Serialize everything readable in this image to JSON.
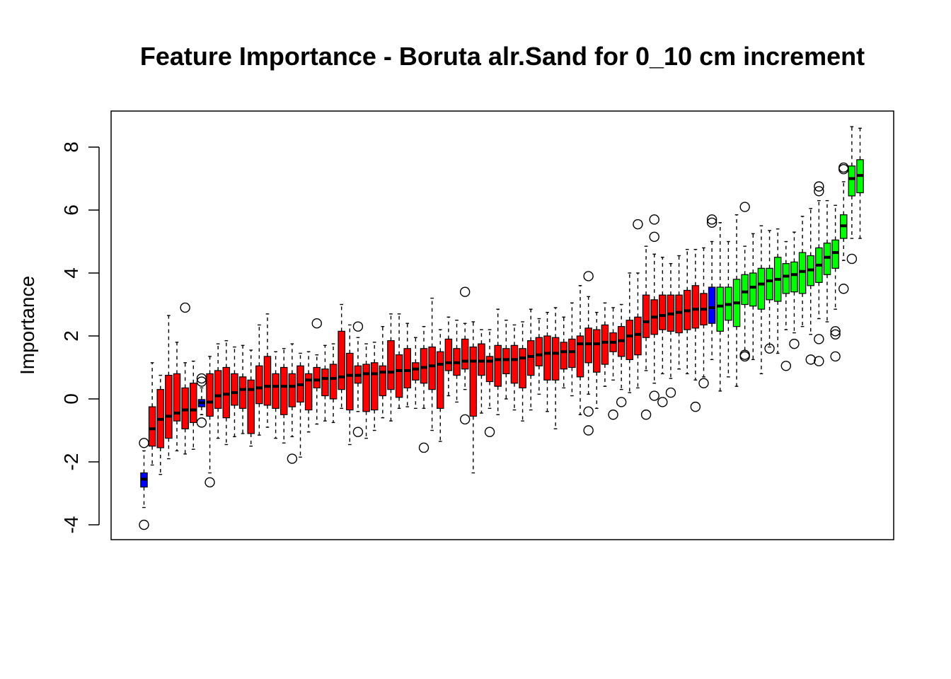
{
  "chart_data": {
    "type": "boxplot",
    "title": "Feature Importance - Boruta alr.Sand for 0_10 cm increment",
    "xlabel": "",
    "ylabel": "Importance",
    "ylim": [
      -4.4,
      9.2
    ],
    "yticks": [
      -4,
      -2,
      0,
      2,
      4,
      6,
      8
    ],
    "ytick_labels": [
      "-4",
      "-2",
      "0",
      "2",
      "4",
      "6",
      "8"
    ],
    "x_tick_labels_visible": false,
    "grid": false,
    "legend": "none",
    "colors": {
      "rejected": "#ff0000",
      "shadow": "#0000ff",
      "confirmed": "#00ff00"
    },
    "series": [
      {
        "status": "shadow",
        "q1": -2.8,
        "median": -2.55,
        "q3": -2.35,
        "wlow": -3.45,
        "whigh": -1.65,
        "outliers": [
          -1.4,
          -4.0
        ]
      },
      {
        "status": "rejected",
        "q1": -1.5,
        "median": -0.95,
        "q3": -0.25,
        "wlow": -2.1,
        "whigh": 1.15,
        "outliers": []
      },
      {
        "status": "rejected",
        "q1": -1.55,
        "median": -0.65,
        "q3": 0.3,
        "wlow": -2.4,
        "whigh": 0.75,
        "outliers": []
      },
      {
        "status": "rejected",
        "q1": -1.25,
        "median": -0.55,
        "q3": 0.75,
        "wlow": -1.9,
        "whigh": 2.65,
        "outliers": []
      },
      {
        "status": "rejected",
        "q1": -0.7,
        "median": -0.45,
        "q3": 0.8,
        "wlow": -1.65,
        "whigh": 1.8,
        "outliers": []
      },
      {
        "status": "rejected",
        "q1": -0.95,
        "median": -0.35,
        "q3": 0.35,
        "wlow": -1.75,
        "whigh": 1.15,
        "outliers": [
          2.9
        ]
      },
      {
        "status": "rejected",
        "q1": -0.75,
        "median": -0.35,
        "q3": 0.5,
        "wlow": -1.6,
        "whigh": 1.2,
        "outliers": []
      },
      {
        "status": "shadow",
        "q1": -0.25,
        "median": -0.12,
        "q3": -0.02,
        "wlow": -0.5,
        "whigh": 0.35,
        "outliers": [
          0.65,
          0.55,
          -0.75
        ]
      },
      {
        "status": "rejected",
        "q1": -0.55,
        "median": -0.1,
        "q3": 0.8,
        "wlow": -2.35,
        "whigh": 1.35,
        "outliers": [
          -2.65
        ]
      },
      {
        "status": "rejected",
        "q1": -0.3,
        "median": 0.1,
        "q3": 0.9,
        "wlow": -1.25,
        "whigh": 1.75,
        "outliers": []
      },
      {
        "status": "rejected",
        "q1": -0.6,
        "median": 0.15,
        "q3": 1.0,
        "wlow": -1.45,
        "whigh": 1.85,
        "outliers": []
      },
      {
        "status": "rejected",
        "q1": -0.2,
        "median": 0.2,
        "q3": 0.8,
        "wlow": -1.2,
        "whigh": 1.65,
        "outliers": []
      },
      {
        "status": "rejected",
        "q1": -0.3,
        "median": 0.3,
        "q3": 0.7,
        "wlow": -1.1,
        "whigh": 1.7,
        "outliers": []
      },
      {
        "status": "rejected",
        "q1": -1.1,
        "median": 0.3,
        "q3": 0.6,
        "wlow": -1.5,
        "whigh": 1.55,
        "outliers": []
      },
      {
        "status": "rejected",
        "q1": -0.15,
        "median": 0.35,
        "q3": 1.05,
        "wlow": -1.15,
        "whigh": 2.35,
        "outliers": []
      },
      {
        "status": "rejected",
        "q1": -0.2,
        "median": 0.4,
        "q3": 1.35,
        "wlow": -0.9,
        "whigh": 2.7,
        "outliers": []
      },
      {
        "status": "rejected",
        "q1": -0.3,
        "median": 0.4,
        "q3": 0.8,
        "wlow": -1.25,
        "whigh": 1.5,
        "outliers": []
      },
      {
        "status": "rejected",
        "q1": -0.5,
        "median": 0.4,
        "q3": 1.0,
        "wlow": -1.4,
        "whigh": 1.6,
        "outliers": []
      },
      {
        "status": "rejected",
        "q1": -0.25,
        "median": 0.4,
        "q3": 0.8,
        "wlow": -1.2,
        "whigh": 1.75,
        "outliers": [
          -1.9
        ]
      },
      {
        "status": "rejected",
        "q1": -0.1,
        "median": 0.45,
        "q3": 1.05,
        "wlow": -1.85,
        "whigh": 1.45,
        "outliers": []
      },
      {
        "status": "rejected",
        "q1": -0.35,
        "median": 0.6,
        "q3": 0.8,
        "wlow": -1.05,
        "whigh": 1.5,
        "outliers": []
      },
      {
        "status": "rejected",
        "q1": 0.35,
        "median": 0.6,
        "q3": 1.0,
        "wlow": -0.8,
        "whigh": 1.4,
        "outliers": [
          2.4
        ]
      },
      {
        "status": "rejected",
        "q1": 0.1,
        "median": 0.65,
        "q3": 0.95,
        "wlow": -0.7,
        "whigh": 1.7,
        "outliers": []
      },
      {
        "status": "rejected",
        "q1": 0.0,
        "median": 0.65,
        "q3": 1.1,
        "wlow": -0.75,
        "whigh": 1.75,
        "outliers": []
      },
      {
        "status": "rejected",
        "q1": 0.3,
        "median": 0.7,
        "q3": 2.15,
        "wlow": -0.3,
        "whigh": 3.0,
        "outliers": []
      },
      {
        "status": "rejected",
        "q1": -0.35,
        "median": 0.75,
        "q3": 1.45,
        "wlow": -1.45,
        "whigh": 2.35,
        "outliers": []
      },
      {
        "status": "rejected",
        "q1": 0.5,
        "median": 0.75,
        "q3": 1.05,
        "wlow": -0.4,
        "whigh": 1.95,
        "outliers": [
          2.3,
          -1.05
        ]
      },
      {
        "status": "rejected",
        "q1": -0.4,
        "median": 0.8,
        "q3": 1.1,
        "wlow": -1.25,
        "whigh": 1.75,
        "outliers": []
      },
      {
        "status": "rejected",
        "q1": -0.35,
        "median": 0.8,
        "q3": 1.15,
        "wlow": -1.0,
        "whigh": 1.8,
        "outliers": []
      },
      {
        "status": "rejected",
        "q1": 0.1,
        "median": 0.85,
        "q3": 1.05,
        "wlow": -0.6,
        "whigh": 2.3,
        "outliers": []
      },
      {
        "status": "rejected",
        "q1": 0.3,
        "median": 0.85,
        "q3": 1.85,
        "wlow": -0.7,
        "whigh": 2.7,
        "outliers": []
      },
      {
        "status": "rejected",
        "q1": 0.05,
        "median": 0.9,
        "q3": 1.4,
        "wlow": -0.3,
        "whigh": 2.7,
        "outliers": []
      },
      {
        "status": "rejected",
        "q1": 0.35,
        "median": 0.9,
        "q3": 1.6,
        "wlow": -0.25,
        "whigh": 2.4,
        "outliers": []
      },
      {
        "status": "rejected",
        "q1": 0.6,
        "median": 0.95,
        "q3": 1.15,
        "wlow": -0.3,
        "whigh": 1.95,
        "outliers": []
      },
      {
        "status": "rejected",
        "q1": 0.5,
        "median": 1.0,
        "q3": 1.6,
        "wlow": -0.3,
        "whigh": 2.3,
        "outliers": [
          -1.55
        ]
      },
      {
        "status": "rejected",
        "q1": 0.3,
        "median": 1.05,
        "q3": 1.65,
        "wlow": -1.0,
        "whigh": 3.2,
        "outliers": []
      },
      {
        "status": "rejected",
        "q1": -0.3,
        "median": 1.1,
        "q3": 1.5,
        "wlow": -1.35,
        "whigh": 2.2,
        "outliers": []
      },
      {
        "status": "rejected",
        "q1": 0.9,
        "median": 1.15,
        "q3": 1.9,
        "wlow": 0.1,
        "whigh": 2.6,
        "outliers": []
      },
      {
        "status": "rejected",
        "q1": 0.75,
        "median": 1.15,
        "q3": 1.6,
        "wlow": -0.1,
        "whigh": 2.5,
        "outliers": []
      },
      {
        "status": "rejected",
        "q1": 0.95,
        "median": 1.2,
        "q3": 1.9,
        "wlow": 0.3,
        "whigh": 2.4,
        "outliers": [
          3.4,
          -0.65
        ]
      },
      {
        "status": "rejected",
        "q1": -0.55,
        "median": 1.2,
        "q3": 1.65,
        "wlow": -2.35,
        "whigh": 2.45,
        "outliers": []
      },
      {
        "status": "rejected",
        "q1": 0.75,
        "median": 1.2,
        "q3": 1.75,
        "wlow": -0.45,
        "whigh": 2.2,
        "outliers": []
      },
      {
        "status": "rejected",
        "q1": 0.55,
        "median": 1.2,
        "q3": 1.35,
        "wlow": -0.3,
        "whigh": 2.2,
        "outliers": [
          -1.05
        ]
      },
      {
        "status": "rejected",
        "q1": 0.4,
        "median": 1.25,
        "q3": 1.7,
        "wlow": -0.5,
        "whigh": 2.85,
        "outliers": []
      },
      {
        "status": "rejected",
        "q1": 0.8,
        "median": 1.25,
        "q3": 1.6,
        "wlow": 0.0,
        "whigh": 2.5,
        "outliers": []
      },
      {
        "status": "rejected",
        "q1": 0.5,
        "median": 1.25,
        "q3": 1.7,
        "wlow": -0.35,
        "whigh": 2.35,
        "outliers": []
      },
      {
        "status": "rejected",
        "q1": 0.35,
        "median": 1.3,
        "q3": 1.6,
        "wlow": -0.7,
        "whigh": 2.45,
        "outliers": []
      },
      {
        "status": "rejected",
        "q1": 0.75,
        "median": 1.35,
        "q3": 1.85,
        "wlow": -0.35,
        "whigh": 2.85,
        "outliers": []
      },
      {
        "status": "rejected",
        "q1": 1.05,
        "median": 1.4,
        "q3": 1.95,
        "wlow": 0.15,
        "whigh": 2.55,
        "outliers": []
      },
      {
        "status": "rejected",
        "q1": 0.6,
        "median": 1.45,
        "q3": 2.0,
        "wlow": -0.4,
        "whigh": 2.75,
        "outliers": []
      },
      {
        "status": "rejected",
        "q1": 0.6,
        "median": 1.45,
        "q3": 1.95,
        "wlow": -0.95,
        "whigh": 2.9,
        "outliers": []
      },
      {
        "status": "rejected",
        "q1": 0.95,
        "median": 1.5,
        "q3": 1.8,
        "wlow": 0.35,
        "whigh": 2.6,
        "outliers": []
      },
      {
        "status": "rejected",
        "q1": 1.0,
        "median": 1.5,
        "q3": 1.9,
        "wlow": 0.1,
        "whigh": 3.05,
        "outliers": []
      },
      {
        "status": "rejected",
        "q1": 0.7,
        "median": 1.75,
        "q3": 2.0,
        "wlow": -0.5,
        "whigh": 3.6,
        "outliers": []
      },
      {
        "status": "rejected",
        "q1": 1.15,
        "median": 1.75,
        "q3": 2.25,
        "wlow": 0.15,
        "whigh": 3.25,
        "outliers": [
          3.9,
          -0.4,
          -1.0
        ]
      },
      {
        "status": "rejected",
        "q1": 0.85,
        "median": 1.75,
        "q3": 2.2,
        "wlow": -0.3,
        "whigh": 2.75,
        "outliers": []
      },
      {
        "status": "rejected",
        "q1": 1.1,
        "median": 1.8,
        "q3": 2.35,
        "wlow": 0.4,
        "whigh": 3.05,
        "outliers": []
      },
      {
        "status": "rejected",
        "q1": 1.5,
        "median": 1.8,
        "q3": 2.1,
        "wlow": 0.6,
        "whigh": 2.9,
        "outliers": [
          -0.5
        ]
      },
      {
        "status": "rejected",
        "q1": 1.35,
        "median": 1.85,
        "q3": 2.3,
        "wlow": 0.3,
        "whigh": 3.0,
        "outliers": [
          -0.1
        ]
      },
      {
        "status": "rejected",
        "q1": 1.25,
        "median": 2.0,
        "q3": 2.5,
        "wlow": 0.2,
        "whigh": 4.0,
        "outliers": []
      },
      {
        "status": "rejected",
        "q1": 1.4,
        "median": 2.05,
        "q3": 2.6,
        "wlow": 0.35,
        "whigh": 4.0,
        "outliers": [
          5.55
        ]
      },
      {
        "status": "rejected",
        "q1": 1.95,
        "median": 2.45,
        "q3": 3.3,
        "wlow": 0.9,
        "whigh": 4.85,
        "outliers": [
          -0.5
        ]
      },
      {
        "status": "rejected",
        "q1": 2.05,
        "median": 2.6,
        "q3": 3.15,
        "wlow": 0.5,
        "whigh": 4.6,
        "outliers": [
          5.7,
          5.15,
          0.1
        ]
      },
      {
        "status": "rejected",
        "q1": 2.2,
        "median": 2.65,
        "q3": 3.3,
        "wlow": 0.8,
        "whigh": 4.5,
        "outliers": [
          -0.1
        ]
      },
      {
        "status": "rejected",
        "q1": 2.15,
        "median": 2.7,
        "q3": 3.3,
        "wlow": 0.65,
        "whigh": 4.3,
        "outliers": [
          0.2
        ]
      },
      {
        "status": "rejected",
        "q1": 2.1,
        "median": 2.75,
        "q3": 3.3,
        "wlow": 0.95,
        "whigh": 4.55,
        "outliers": []
      },
      {
        "status": "rejected",
        "q1": 2.2,
        "median": 2.8,
        "q3": 3.45,
        "wlow": 0.8,
        "whigh": 4.75,
        "outliers": []
      },
      {
        "status": "rejected",
        "q1": 2.25,
        "median": 2.85,
        "q3": 3.6,
        "wlow": 0.6,
        "whigh": 4.75,
        "outliers": [
          -0.25
        ]
      },
      {
        "status": "rejected",
        "q1": 2.35,
        "median": 2.85,
        "q3": 3.35,
        "wlow": 0.7,
        "whigh": 4.8,
        "outliers": [
          0.5
        ]
      },
      {
        "status": "shadow",
        "q1": 2.4,
        "median": 2.9,
        "q3": 3.55,
        "wlow": 1.25,
        "whigh": 5.0,
        "outliers": [
          5.7,
          5.6
        ]
      },
      {
        "status": "confirmed",
        "q1": 2.15,
        "median": 2.95,
        "q3": 3.55,
        "wlow": 0.25,
        "whigh": 5.6,
        "outliers": []
      },
      {
        "status": "confirmed",
        "q1": 2.5,
        "median": 3.0,
        "q3": 3.55,
        "wlow": 0.7,
        "whigh": 5.0,
        "outliers": []
      },
      {
        "status": "confirmed",
        "q1": 2.3,
        "median": 3.05,
        "q3": 3.8,
        "wlow": 0.4,
        "whigh": 5.85,
        "outliers": []
      },
      {
        "status": "confirmed",
        "q1": 3.0,
        "median": 3.4,
        "q3": 3.95,
        "wlow": 1.5,
        "whigh": 4.85,
        "outliers": [
          6.1,
          1.35,
          1.4
        ]
      },
      {
        "status": "confirmed",
        "q1": 2.95,
        "median": 3.55,
        "q3": 4.0,
        "wlow": 1.25,
        "whigh": 5.25,
        "outliers": []
      },
      {
        "status": "confirmed",
        "q1": 2.85,
        "median": 3.65,
        "q3": 4.15,
        "wlow": 0.8,
        "whigh": 5.5,
        "outliers": []
      },
      {
        "status": "confirmed",
        "q1": 3.15,
        "median": 3.75,
        "q3": 4.15,
        "wlow": 1.65,
        "whigh": 5.35,
        "outliers": [
          1.6
        ]
      },
      {
        "status": "confirmed",
        "q1": 3.1,
        "median": 3.8,
        "q3": 4.5,
        "wlow": 1.45,
        "whigh": 5.4,
        "outliers": []
      },
      {
        "status": "confirmed",
        "q1": 3.35,
        "median": 3.9,
        "q3": 4.3,
        "wlow": 2.2,
        "whigh": 5.0,
        "outliers": [
          1.05
        ]
      },
      {
        "status": "confirmed",
        "q1": 3.4,
        "median": 3.95,
        "q3": 4.35,
        "wlow": 2.1,
        "whigh": 5.3,
        "outliers": [
          1.75
        ]
      },
      {
        "status": "confirmed",
        "q1": 3.35,
        "median": 4.05,
        "q3": 4.65,
        "wlow": 2.3,
        "whigh": 5.8,
        "outliers": []
      },
      {
        "status": "confirmed",
        "q1": 3.6,
        "median": 4.1,
        "q3": 4.55,
        "wlow": 2.05,
        "whigh": 6.05,
        "outliers": [
          1.25
        ]
      },
      {
        "status": "confirmed",
        "q1": 3.7,
        "median": 4.25,
        "q3": 4.8,
        "wlow": 2.55,
        "whigh": 6.3,
        "outliers": [
          6.75,
          6.6,
          1.9,
          1.2
        ]
      },
      {
        "status": "confirmed",
        "q1": 3.95,
        "median": 4.5,
        "q3": 4.95,
        "wlow": 2.45,
        "whigh": 6.3,
        "outliers": []
      },
      {
        "status": "confirmed",
        "q1": 4.15,
        "median": 4.65,
        "q3": 5.05,
        "wlow": 2.85,
        "whigh": 6.15,
        "outliers": [
          2.15,
          2.05,
          1.35
        ]
      },
      {
        "status": "confirmed",
        "q1": 5.1,
        "median": 5.5,
        "q3": 5.85,
        "wlow": 4.4,
        "whigh": 6.9,
        "outliers": [
          7.35,
          7.3,
          3.5
        ]
      },
      {
        "status": "confirmed",
        "q1": 6.45,
        "median": 7.0,
        "q3": 7.4,
        "wlow": 5.1,
        "whigh": 8.65,
        "outliers": [
          4.45
        ]
      },
      {
        "status": "confirmed",
        "q1": 6.55,
        "median": 7.1,
        "q3": 7.6,
        "wlow": 5.1,
        "whigh": 8.6,
        "outliers": []
      }
    ]
  }
}
